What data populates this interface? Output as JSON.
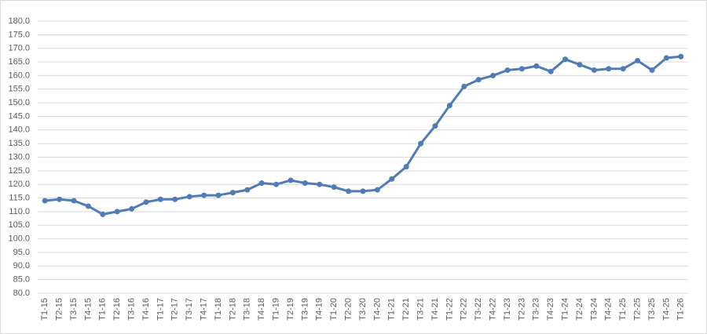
{
  "chart_data": {
    "type": "line",
    "categories": [
      "T1-15",
      "T2-15",
      "T3-15",
      "T4-15",
      "T1-16",
      "T2-16",
      "T3-16",
      "T4-16",
      "T1-17",
      "T2-17",
      "T3-17",
      "T4-17",
      "T1-18",
      "T2-18",
      "T3-18",
      "T4-18",
      "T1-19",
      "T2-19",
      "T3-19",
      "T4-19",
      "T1-20",
      "T2-20",
      "T3-20",
      "T4-20",
      "T1-21",
      "T2-21",
      "T3-21",
      "T4-21",
      "T1-22",
      "T2-22",
      "T3-22",
      "T4-22",
      "T1-23",
      "T2-23",
      "T3-23",
      "T4-23",
      "T1-24",
      "T2-24",
      "T3-24",
      "T4-24",
      "T1-25",
      "T2-25",
      "T3-25",
      "T4-25",
      "T1-26"
    ],
    "values": [
      114,
      114.5,
      114,
      112,
      109,
      110,
      111,
      113.5,
      114.5,
      114.5,
      115.5,
      116,
      116,
      117,
      118,
      120.5,
      120,
      121.5,
      120.5,
      120,
      119,
      117.5,
      117.5,
      118,
      122,
      126.5,
      135,
      141.5,
      149,
      156,
      158.5,
      160,
      162,
      162.5,
      163.5,
      161.5,
      166,
      164,
      162,
      162.5,
      162.5,
      165.5,
      162,
      166.5,
      167
    ],
    "color": "#4f7cb5",
    "ylim": [
      80,
      180
    ],
    "yticks": [
      {
        "value": 80,
        "label": "80.0"
      },
      {
        "value": 85,
        "label": "85.0"
      },
      {
        "value": 90,
        "label": "90.0"
      },
      {
        "value": 95,
        "label": "95.0"
      },
      {
        "value": 100,
        "label": "100.0"
      },
      {
        "value": 105,
        "label": "105.0"
      },
      {
        "value": 110,
        "label": "110.0"
      },
      {
        "value": 115,
        "label": "115.0"
      },
      {
        "value": 120,
        "label": "120.0"
      },
      {
        "value": 125,
        "label": "125.0"
      },
      {
        "value": 130,
        "label": "130.0"
      },
      {
        "value": 135,
        "label": "135.0"
      },
      {
        "value": 140,
        "label": "140.0"
      },
      {
        "value": 145,
        "label": "145.0"
      },
      {
        "value": 150,
        "label": "150.0"
      },
      {
        "value": 155,
        "label": "155.0"
      },
      {
        "value": 160,
        "label": "160.0"
      },
      {
        "value": 165,
        "label": "165.0"
      },
      {
        "value": 170,
        "label": "170.0"
      },
      {
        "value": 175,
        "label": "175.0"
      },
      {
        "value": 180,
        "label": "180.0"
      }
    ],
    "grid": true
  }
}
